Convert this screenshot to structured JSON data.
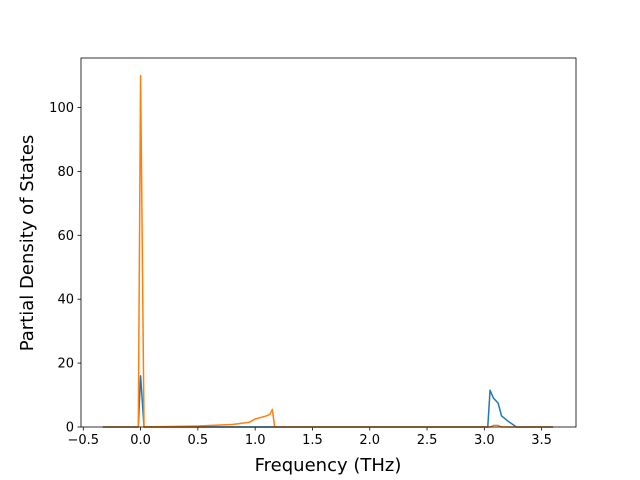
{
  "chart_data": {
    "type": "line",
    "xlabel": "Frequency (THz)",
    "ylabel": "Partial Density of States",
    "x": [
      -0.33,
      -0.02,
      0.0,
      0.03,
      0.5,
      0.8,
      0.95,
      1.0,
      1.05,
      1.1,
      1.13,
      1.15,
      1.17,
      3.03,
      3.05,
      3.08,
      3.12,
      3.15,
      3.2,
      3.28,
      3.6
    ],
    "series": [
      {
        "color": "#1f77b4",
        "values": [
          0,
          0,
          16,
          0,
          0,
          0,
          0,
          0,
          0,
          0,
          0,
          0,
          0,
          0,
          11.5,
          9,
          7.5,
          3.5,
          2,
          0,
          0
        ]
      },
      {
        "color": "#ff7f0e",
        "values": [
          0,
          0,
          110,
          0,
          0.3,
          0.8,
          1.5,
          2.5,
          3,
          3.5,
          4,
          5.5,
          0,
          0,
          0,
          0.5,
          0.5,
          0,
          0,
          0,
          0
        ]
      }
    ],
    "xlim": [
      -0.52,
      3.8
    ],
    "ylim": [
      0,
      115.5
    ],
    "xticks": [
      {
        "value": -0.5,
        "label": "−0.5"
      },
      {
        "value": 0,
        "label": "0.0"
      },
      {
        "value": 0.5,
        "label": "0.5"
      },
      {
        "value": 1,
        "label": "1.0"
      },
      {
        "value": 1.5,
        "label": "1.5"
      },
      {
        "value": 2,
        "label": "2.0"
      },
      {
        "value": 2.5,
        "label": "2.5"
      },
      {
        "value": 3,
        "label": "3.0"
      },
      {
        "value": 3.5,
        "label": "3.5"
      }
    ],
    "yticks": [
      0,
      20,
      40,
      60,
      80,
      100
    ]
  }
}
